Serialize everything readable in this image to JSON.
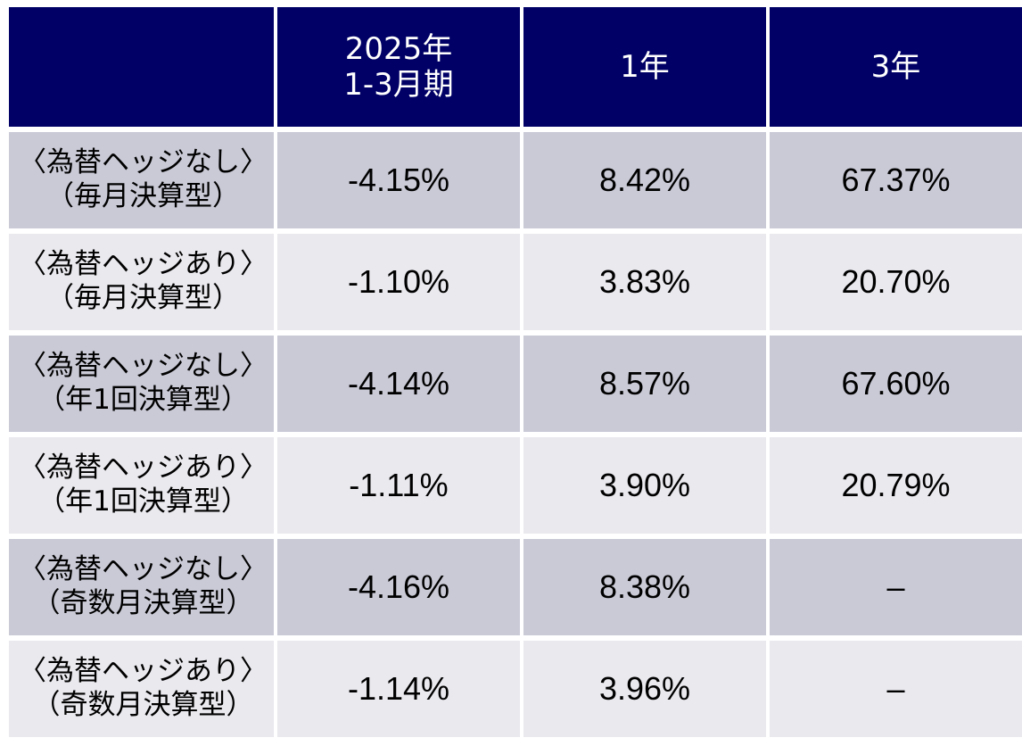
{
  "chart_data": {
    "type": "table",
    "columns": [
      "",
      "2025年\n1-3月期",
      "1年",
      "3年"
    ],
    "header": {
      "col1_line1": "2025年",
      "col1_line2": "1-3月期",
      "col2": "1年",
      "col3": "3年"
    },
    "rows": [
      {
        "line1": "〈為替ヘッジなし〉",
        "line2": "（毎月決算型）",
        "q": "-4.15%",
        "y1": "8.42%",
        "y3": "67.37%"
      },
      {
        "line1": "〈為替ヘッジあり〉",
        "line2": "（毎月決算型）",
        "q": "-1.10%",
        "y1": "3.83%",
        "y3": "20.70%"
      },
      {
        "line1": "〈為替ヘッジなし〉",
        "line2": "（年1回決算型）",
        "q": "-4.14%",
        "y1": "8.57%",
        "y3": "67.60%"
      },
      {
        "line1": "〈為替ヘッジあり〉",
        "line2": "（年1回決算型）",
        "q": "-1.11%",
        "y1": "3.90%",
        "y3": "20.79%"
      },
      {
        "line1": "〈為替ヘッジなし〉",
        "line2": "（奇数月決算型）",
        "q": "-4.16%",
        "y1": "8.38%",
        "y3": "–"
      },
      {
        "line1": "〈為替ヘッジあり〉",
        "line2": "（奇数月決算型）",
        "q": "-1.14%",
        "y1": "3.96%",
        "y3": "–"
      }
    ]
  },
  "colors": {
    "header_bg": "#000066",
    "header_text": "#ffffff",
    "row_dark": "#c9cad6",
    "row_light": "#e9e9ee"
  }
}
